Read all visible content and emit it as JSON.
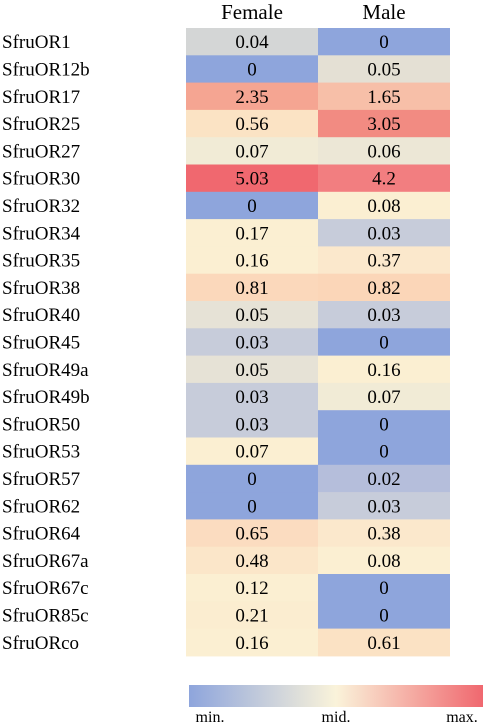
{
  "chart_data": {
    "type": "heatmap",
    "columns": [
      "Female",
      "Male"
    ],
    "rows": [
      "SfruOR1",
      "SfruOR12b",
      "SfruOR17",
      "SfruOR25",
      "SfruOR27",
      "SfruOR30",
      "SfruOR32",
      "SfruOR34",
      "SfruOR35",
      "SfruOR38",
      "SfruOR40",
      "SfruOR45",
      "SfruOR49a",
      "SfruOR49b",
      "SfruOR50",
      "SfruOR53",
      "SfruOR57",
      "SfruOR62",
      "SfruOR64",
      "SfruOR67a",
      "SfruOR67c",
      "SfruOR85c",
      "SfruORco"
    ],
    "values": [
      [
        0.04,
        0
      ],
      [
        0,
        0.05
      ],
      [
        2.35,
        1.65
      ],
      [
        0.56,
        3.05
      ],
      [
        0.07,
        0.06
      ],
      [
        5.03,
        4.2
      ],
      [
        0,
        0.08
      ],
      [
        0.17,
        0.03
      ],
      [
        0.16,
        0.37
      ],
      [
        0.81,
        0.82
      ],
      [
        0.05,
        0.03
      ],
      [
        0.03,
        0
      ],
      [
        0.05,
        0.16
      ],
      [
        0.03,
        0.07
      ],
      [
        0.03,
        0
      ],
      [
        0.07,
        0
      ],
      [
        0,
        0.02
      ],
      [
        0,
        0.03
      ],
      [
        0.65,
        0.38
      ],
      [
        0.48,
        0.08
      ],
      [
        0.12,
        0
      ],
      [
        0.21,
        0
      ],
      [
        0.16,
        0.61
      ]
    ],
    "cell_labels": [
      [
        "0.04",
        "0"
      ],
      [
        "0",
        "0.05"
      ],
      [
        "2.35",
        "1.65"
      ],
      [
        "0.56",
        "3.05"
      ],
      [
        "0.07",
        "0.06"
      ],
      [
        "5.03",
        "4.2"
      ],
      [
        "0",
        "0.08"
      ],
      [
        "0.17",
        "0.03"
      ],
      [
        "0.16",
        "0.37"
      ],
      [
        "0.81",
        "0.82"
      ],
      [
        "0.05",
        "0.03"
      ],
      [
        "0.03",
        "0"
      ],
      [
        "0.05",
        "0.16"
      ],
      [
        "0.03",
        "0.07"
      ],
      [
        "0.03",
        "0"
      ],
      [
        "0.07",
        "0"
      ],
      [
        "0",
        "0.02"
      ],
      [
        "0",
        "0.03"
      ],
      [
        "0.65",
        "0.38"
      ],
      [
        "0.48",
        "0.08"
      ],
      [
        "0.12",
        "0"
      ],
      [
        "0.21",
        "0"
      ],
      [
        "0.16",
        "0.61"
      ]
    ],
    "cell_colors": [
      [
        "#d4d6d6",
        "#8ea5dc"
      ],
      [
        "#8ea5dc",
        "#e4e0d4"
      ],
      [
        "#f5a592",
        "#f7bfa8"
      ],
      [
        "#fbe3c4",
        "#f28b82"
      ],
      [
        "#f1ebd6",
        "#ece7d6"
      ],
      [
        "#f0686f",
        "#f27e80"
      ],
      [
        "#8ea5dc",
        "#fbefd2"
      ],
      [
        "#fbefd2",
        "#c7ccda"
      ],
      [
        "#fbefd2",
        "#fbe8cc"
      ],
      [
        "#fbd8bb",
        "#fbd6b8"
      ],
      [
        "#e6e2d6",
        "#c7ccda"
      ],
      [
        "#c7ccda",
        "#8ea5dc"
      ],
      [
        "#e6e2d6",
        "#fbefd2"
      ],
      [
        "#c7ccda",
        "#f1ebd6"
      ],
      [
        "#c7ccda",
        "#8ea5dc"
      ],
      [
        "#fbefd2",
        "#8ea5dc"
      ],
      [
        "#8ea5dc",
        "#b5bedb"
      ],
      [
        "#8ea5dc",
        "#c7ccda"
      ],
      [
        "#fbdcc0",
        "#fbe8cc"
      ],
      [
        "#fbe6c9",
        "#fbefd2"
      ],
      [
        "#fbefd2",
        "#8ea5dc"
      ],
      [
        "#fbedd0",
        "#8ea5dc"
      ],
      [
        "#fbefd2",
        "#fbe2c4"
      ]
    ],
    "legend": {
      "labels": [
        "min.",
        "mid.",
        "max."
      ],
      "gradient_colors": [
        "#8ea5dc",
        "#faf3da",
        "#f0686f"
      ]
    }
  }
}
